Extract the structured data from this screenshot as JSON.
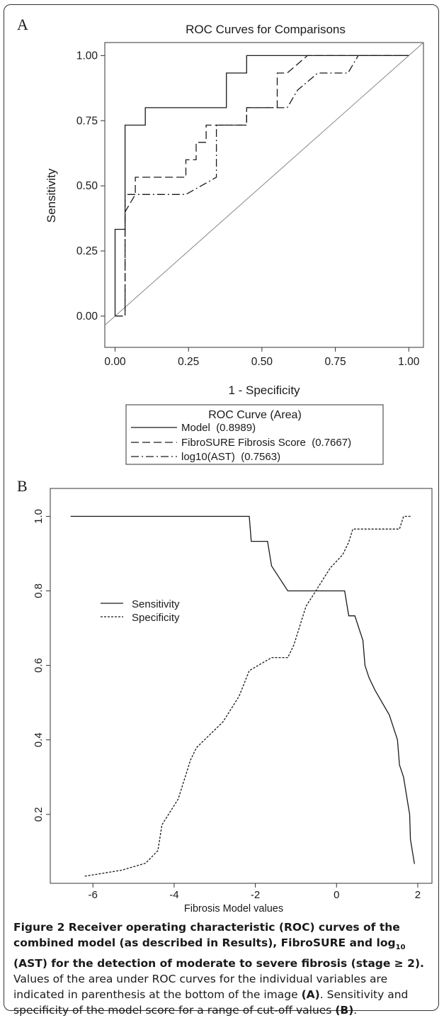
{
  "colors": {
    "ink": "#1a1a1a",
    "axis": "#333333",
    "diagonal": "#888888"
  },
  "chart_data": [
    {
      "panel_letter": "A",
      "type": "line",
      "title": "ROC Curves for Comparisons",
      "xlabel": "1 - Specificity",
      "ylabel": "Sensitivity",
      "xlim": [
        -0.035,
        1.05
      ],
      "ylim": [
        -0.12,
        1.05
      ],
      "xticks": [
        0,
        0.25,
        0.5,
        0.75,
        1.0
      ],
      "xtick_labels": [
        "0.00",
        "0.25",
        "0.50",
        "0.75",
        "1.00"
      ],
      "yticks": [
        0,
        0.25,
        0.5,
        0.75,
        1.0
      ],
      "ytick_labels": [
        "0.00",
        "0.25",
        "0.50",
        "0.75",
        "1.00"
      ],
      "grid": false,
      "diagonal_reference": true,
      "legend_title": "ROC Curve (Area)",
      "legend_position": "below",
      "series": [
        {
          "name": "Model  (0.8989)",
          "style": "solid",
          "points": [
            [
              0,
              0
            ],
            [
              0,
              0.333
            ],
            [
              0.034,
              0.333
            ],
            [
              0.034,
              0.733
            ],
            [
              0.103,
              0.733
            ],
            [
              0.103,
              0.8
            ],
            [
              0.379,
              0.8
            ],
            [
              0.379,
              0.933
            ],
            [
              0.448,
              0.933
            ],
            [
              0.448,
              1.0
            ],
            [
              1.0,
              1.0
            ]
          ]
        },
        {
          "name": "FibroSURE Fibrosis Score  (0.7667)",
          "style": "longdash",
          "points": [
            [
              0,
              0
            ],
            [
              0.034,
              0
            ],
            [
              0.034,
              0.4
            ],
            [
              0.069,
              0.467
            ],
            [
              0.069,
              0.533
            ],
            [
              0.241,
              0.533
            ],
            [
              0.241,
              0.6
            ],
            [
              0.276,
              0.6
            ],
            [
              0.276,
              0.667
            ],
            [
              0.31,
              0.667
            ],
            [
              0.31,
              0.733
            ],
            [
              0.448,
              0.733
            ],
            [
              0.448,
              0.8
            ],
            [
              0.552,
              0.8
            ],
            [
              0.552,
              0.933
            ],
            [
              0.586,
              0.933
            ],
            [
              0.655,
              1.0
            ],
            [
              1.0,
              1.0
            ]
          ]
        },
        {
          "name": "log10(AST)  (0.7563)",
          "style": "dashdot",
          "points": [
            [
              0,
              0
            ],
            [
              0.034,
              0
            ],
            [
              0.034,
              0.467
            ],
            [
              0.241,
              0.467
            ],
            [
              0.345,
              0.533
            ],
            [
              0.345,
              0.733
            ],
            [
              0.448,
              0.733
            ],
            [
              0.448,
              0.8
            ],
            [
              0.586,
              0.8
            ],
            [
              0.621,
              0.867
            ],
            [
              0.69,
              0.933
            ],
            [
              0.793,
              0.933
            ],
            [
              0.828,
              1.0
            ],
            [
              1.0,
              1.0
            ]
          ]
        }
      ]
    },
    {
      "panel_letter": "B",
      "type": "line",
      "title": "",
      "xlabel": "Fibrosis Model values",
      "ylabel": "",
      "xlim": [
        -7.05,
        2.35
      ],
      "ylim": [
        0.015,
        1.075
      ],
      "xticks": [
        -6,
        -4,
        -2,
        0,
        2
      ],
      "xtick_labels": [
        "-6",
        "-4",
        "-2",
        "0",
        "2"
      ],
      "yticks": [
        0.2,
        0.4,
        0.6,
        0.8,
        1.0
      ],
      "ytick_labels": [
        "0.2",
        "0.4",
        "0.6",
        "0.8",
        "1.0"
      ],
      "grid": false,
      "legend_position": "left, inside",
      "series": [
        {
          "name": "Sensitivity",
          "style": "solid",
          "points": [
            [
              -6.55,
              1.0
            ],
            [
              -2.15,
              1.0
            ],
            [
              -2.1,
              0.933
            ],
            [
              -1.7,
              0.933
            ],
            [
              -1.6,
              0.867
            ],
            [
              -1.2,
              0.8
            ],
            [
              0.2,
              0.8
            ],
            [
              0.3,
              0.733
            ],
            [
              0.45,
              0.733
            ],
            [
              0.65,
              0.667
            ],
            [
              0.7,
              0.6
            ],
            [
              0.8,
              0.567
            ],
            [
              0.95,
              0.533
            ],
            [
              1.3,
              0.467
            ],
            [
              1.5,
              0.4
            ],
            [
              1.55,
              0.333
            ],
            [
              1.65,
              0.3
            ],
            [
              1.75,
              0.233
            ],
            [
              1.8,
              0.2
            ],
            [
              1.82,
              0.133
            ],
            [
              1.92,
              0.067
            ]
          ]
        },
        {
          "name": "Specificity",
          "style": "dotted",
          "points": [
            [
              -6.2,
              0.034
            ],
            [
              -5.3,
              0.05
            ],
            [
              -4.7,
              0.069
            ],
            [
              -4.4,
              0.103
            ],
            [
              -4.3,
              0.172
            ],
            [
              -3.9,
              0.241
            ],
            [
              -3.7,
              0.31
            ],
            [
              -3.6,
              0.345
            ],
            [
              -3.45,
              0.379
            ],
            [
              -2.8,
              0.448
            ],
            [
              -2.4,
              0.517
            ],
            [
              -2.15,
              0.586
            ],
            [
              -1.6,
              0.621
            ],
            [
              -1.2,
              0.621
            ],
            [
              -1.05,
              0.655
            ],
            [
              -0.75,
              0.759
            ],
            [
              -0.55,
              0.793
            ],
            [
              -0.35,
              0.828
            ],
            [
              -0.15,
              0.862
            ],
            [
              0.15,
              0.897
            ],
            [
              0.3,
              0.931
            ],
            [
              0.4,
              0.966
            ],
            [
              1.55,
              0.966
            ],
            [
              1.65,
              1.0
            ],
            [
              1.85,
              1.0
            ]
          ]
        }
      ]
    }
  ],
  "caption": {
    "figure_label": "Figure 2",
    "title_part1": " Receiver operating characteristic (ROC) curves of the combined model (as described in Results), FibroSURE and log",
    "title_sub": "10",
    "title_part2": " (AST) for the detection of moderate to severe fibrosis (stage ≥ 2).",
    "body_part1": " Values of the area under ROC curves for the individual variables are indicated in parenthesis at the bottom of the image ",
    "ref_a": "(A)",
    "body_part2": ". Sensitivity and specificity of the model score for a range of cut-off values ",
    "ref_b": "(B)",
    "body_end": "."
  }
}
